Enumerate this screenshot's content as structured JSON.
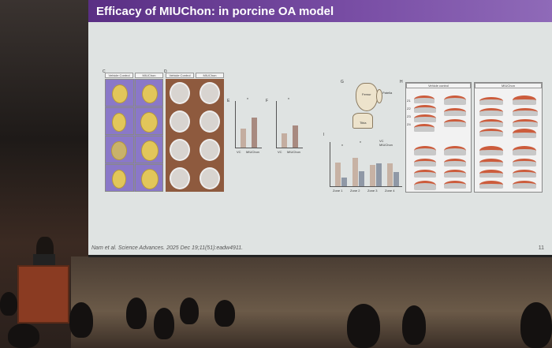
{
  "slide": {
    "title": "Efficacy of MIUChon: in porcine OA model",
    "citation": "Nam et al. Science Advances. 2025 Dec 19;11(51):eadw4911.",
    "page_number": "11",
    "title_bar_color": "#6a3d96",
    "panels": {
      "C": {
        "letter": "C",
        "headers": [
          "Vehicle Control",
          "MIUChon"
        ]
      },
      "D": {
        "letter": "D",
        "headers": [
          "Vehicle Control",
          "MIUChon"
        ]
      },
      "E": {
        "letter": "E",
        "x_labels": [
          "VC",
          "MIUChon"
        ],
        "sig": "*"
      },
      "F": {
        "letter": "F",
        "x_labels": [
          "VC",
          "MIUChon"
        ],
        "sig": "*"
      },
      "G": {
        "letter": "G",
        "labels": [
          "Femur",
          "Patella",
          "Tibia"
        ]
      },
      "H": {
        "letter": "H",
        "headers": [
          "Vehicle control",
          "MIUChon"
        ],
        "zones": [
          "Z1",
          "Z2",
          "Z3",
          "Z4"
        ]
      },
      "I": {
        "letter": "I",
        "legend": [
          "VC",
          "MIUChon"
        ],
        "zones": [
          "Zone 1",
          "Zone 2",
          "Zone 3",
          "Zone 4"
        ],
        "sig": "*"
      }
    }
  }
}
